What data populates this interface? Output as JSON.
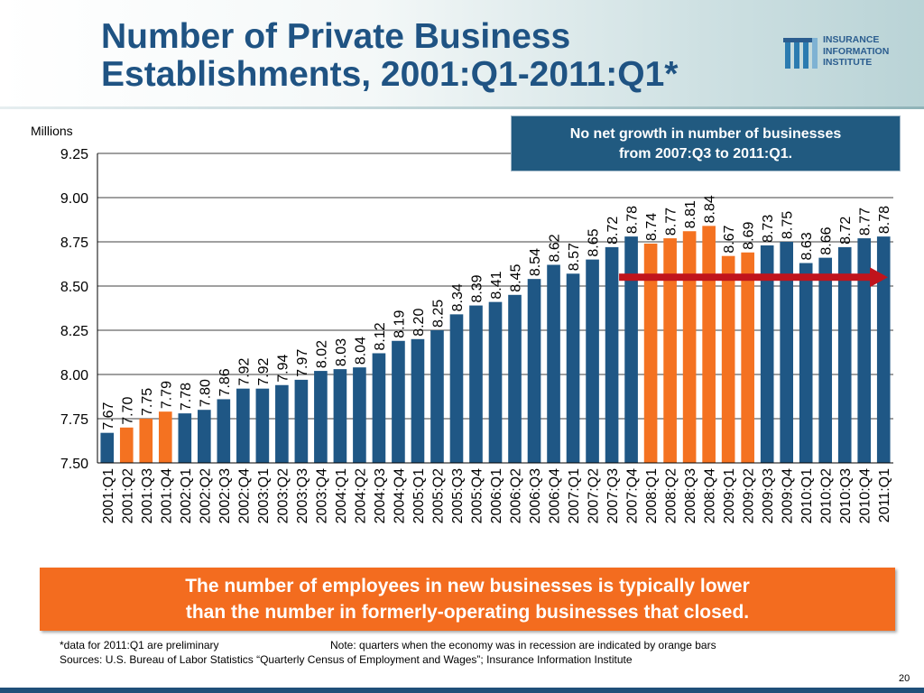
{
  "title_line1": "Number of Private Business",
  "title_line2": "Establishments, 2001:Q1-2011:Q1*",
  "logo": {
    "line1": "INSURANCE",
    "line2": "INFORMATION",
    "line3": "INSTITUTE",
    "color": "#2b5d8f"
  },
  "callout": {
    "line1": "No net growth in number of businesses",
    "line2": "from 2007:Q3 to 2011:Q1.",
    "color": "#215a80"
  },
  "bottom_box": {
    "line1": "The number of employees in new businesses is typically lower",
    "line2": "than the number in formerly-operating businesses that closed.",
    "color": "#f36c1f"
  },
  "footnote_prelim": "*data for 2011:Q1 are preliminary",
  "footnote_note": "Note: quarters when the economy was in recession are indicated by orange bars",
  "sources": "Sources: U.S. Bureau of Labor Statistics “Quarterly Census of Employment and Wages”; Insurance Information Institute",
  "page_number": "20",
  "chart_data": {
    "type": "bar",
    "ylabel": "Millions",
    "ylim": [
      7.5,
      9.25
    ],
    "yticks": [
      "7.50",
      "7.75",
      "8.00",
      "8.25",
      "8.50",
      "8.75",
      "9.00",
      "9.25"
    ],
    "categories": [
      "2001:Q1",
      "2001:Q2",
      "2001:Q3",
      "2001:Q4",
      "2002:Q1",
      "2002:Q2",
      "2002:Q3",
      "2002:Q4",
      "2003:Q1",
      "2003:Q2",
      "2003:Q3",
      "2003:Q4",
      "2004:Q1",
      "2004:Q2",
      "2004:Q3",
      "2004:Q4",
      "2005:Q1",
      "2005:Q2",
      "2005:Q3",
      "2005:Q4",
      "2006:Q1",
      "2006:Q2",
      "2006:Q3",
      "2006:Q4",
      "2007:Q1",
      "2007:Q2",
      "2007:Q3",
      "2007:Q4",
      "2008:Q1",
      "2008:Q2",
      "2008:Q3",
      "2008:Q4",
      "2009:Q1",
      "2009:Q2",
      "2009:Q3",
      "2009:Q4",
      "2010:Q1",
      "2010:Q2",
      "2010:Q3",
      "2010:Q4",
      "2011:Q1"
    ],
    "values": [
      7.67,
      7.7,
      7.75,
      7.79,
      7.78,
      7.8,
      7.86,
      7.92,
      7.92,
      7.94,
      7.97,
      8.02,
      8.03,
      8.04,
      8.12,
      8.19,
      8.2,
      8.25,
      8.34,
      8.39,
      8.41,
      8.45,
      8.54,
      8.62,
      8.57,
      8.65,
      8.72,
      8.78,
      8.74,
      8.77,
      8.81,
      8.84,
      8.67,
      8.69,
      8.73,
      8.75,
      8.63,
      8.66,
      8.72,
      8.77,
      8.78
    ],
    "labels": [
      "7.67",
      "7.70",
      "7.75",
      "7.79",
      "7.78",
      "7.80",
      "7.86",
      "7.92",
      "7.92",
      "7.94",
      "7.97",
      "8.02",
      "8.03",
      "8.04",
      "8.12",
      "8.19",
      "8.20",
      "8.25",
      "8.34",
      "8.39",
      "8.41",
      "8.45",
      "8.54",
      "8.62",
      "8.57",
      "8.65",
      "8.72",
      "8.78",
      "8.74",
      "8.77",
      "8.81",
      "8.84",
      "8.67",
      "8.69",
      "8.73",
      "8.75",
      "8.63",
      "8.66",
      "8.72",
      "8.77",
      "8.78"
    ],
    "recession": [
      false,
      true,
      true,
      true,
      false,
      false,
      false,
      false,
      false,
      false,
      false,
      false,
      false,
      false,
      false,
      false,
      false,
      false,
      false,
      false,
      false,
      false,
      false,
      false,
      false,
      false,
      false,
      false,
      true,
      true,
      true,
      true,
      true,
      true,
      false,
      false,
      false,
      false,
      false,
      false,
      false
    ],
    "colors": {
      "normal": "#1f5785",
      "recession": "#f47221",
      "arrow": "#c0141c"
    },
    "arrow": {
      "from": "2007:Q3",
      "to": "2011:Q1",
      "level": 8.55
    },
    "grid": true
  }
}
